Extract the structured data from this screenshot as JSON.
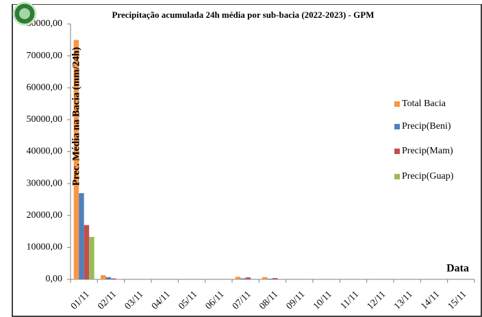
{
  "chart_data": {
    "type": "bar",
    "title": "Precipitação acumulada 24h média por sub-bacia (2022-2023) - GPM",
    "y_label": "Prec. Média na Bacia (mm/24h)",
    "x_label": "Data",
    "categories": [
      "01/11",
      "02/11",
      "03/11",
      "04/11",
      "05/11",
      "06/11",
      "07/11",
      "08/11",
      "09/11",
      "10/11",
      "11/11",
      "12/11",
      "13/11",
      "14/11",
      "15/11"
    ],
    "series": [
      {
        "name": "Total Bacia",
        "color": "#f79646",
        "values": [
          75000,
          1300,
          0,
          0,
          0,
          0,
          800,
          700,
          0,
          0,
          0,
          0,
          0,
          0,
          0
        ]
      },
      {
        "name": "Precip(Beni)",
        "color": "#4f81bd",
        "values": [
          27000,
          700,
          0,
          0,
          0,
          0,
          300,
          200,
          0,
          0,
          0,
          0,
          0,
          0,
          0
        ]
      },
      {
        "name": "Precip(Mam)",
        "color": "#c0504d",
        "values": [
          17000,
          300,
          0,
          0,
          0,
          0,
          600,
          400,
          0,
          0,
          0,
          0,
          0,
          0,
          0
        ]
      },
      {
        "name": "Precip(Guap)",
        "color": "#9bbb59",
        "values": [
          13300,
          100,
          0,
          0,
          0,
          0,
          0,
          0,
          0,
          0,
          0,
          0,
          0,
          0,
          0
        ]
      }
    ],
    "ylim": [
      0,
      80000
    ],
    "yticks": [
      {
        "value": 0,
        "label": "0,00"
      },
      {
        "value": 10000,
        "label": "10000,00"
      },
      {
        "value": 20000,
        "label": "20000,00"
      },
      {
        "value": 30000,
        "label": "30000,00"
      },
      {
        "value": 40000,
        "label": "40000,00"
      },
      {
        "value": 50000,
        "label": "50000,00"
      },
      {
        "value": 60000,
        "label": "60000,00"
      },
      {
        "value": 70000,
        "label": "70000,00"
      },
      {
        "value": 80000,
        "label": "80000,00"
      }
    ],
    "legend": "right"
  }
}
